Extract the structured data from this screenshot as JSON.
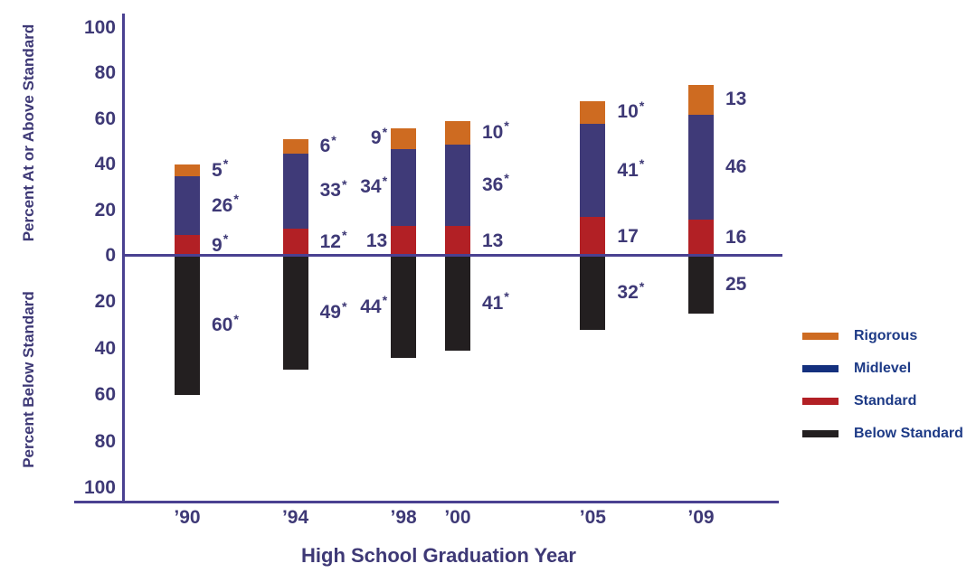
{
  "chart_data": {
    "type": "bar",
    "subtype": "diverging-stacked",
    "xlabel": "High School Graduation Year",
    "ylabel_top": "Percent At or Above Standard",
    "ylabel_bottom": "Percent Below Standard",
    "categories": [
      "’90",
      "’94",
      "’98",
      "’00",
      "’05",
      "’09"
    ],
    "years": [
      1990,
      1994,
      1998,
      2000,
      2005,
      2009
    ],
    "y_ticks_above": [
      "100",
      "80",
      "60",
      "40",
      "20",
      "0"
    ],
    "y_ticks_below": [
      "20",
      "40",
      "60",
      "80",
      "100"
    ],
    "ylim_above": [
      0,
      100
    ],
    "ylim_below": [
      0,
      100
    ],
    "series_above": [
      {
        "name": "Standard",
        "color": "#B22025",
        "values": [
          9,
          12,
          13,
          13,
          17,
          16
        ],
        "labels": [
          "9*",
          "12*",
          "13",
          "13",
          "17",
          "16"
        ]
      },
      {
        "name": "Midlevel",
        "color": "#3F3A78",
        "values": [
          26,
          33,
          34,
          36,
          41,
          46
        ],
        "labels": [
          "26*",
          "33*",
          "34*",
          "36*",
          "41*",
          "46"
        ]
      },
      {
        "name": "Rigorous",
        "color": "#CE6B21",
        "values": [
          5,
          6,
          9,
          10,
          10,
          13
        ],
        "labels": [
          "5*",
          "6*",
          "9*",
          "10*",
          "10*",
          "13"
        ]
      }
    ],
    "series_below": [
      {
        "name": "Below Standard",
        "color": "#231F20",
        "values": [
          60,
          49,
          44,
          41,
          32,
          25
        ],
        "labels": [
          "60*",
          "49*",
          "44*",
          "41*",
          "32*",
          "25"
        ]
      }
    ]
  },
  "legend": {
    "items": [
      {
        "name": "rigorous",
        "label": "Rigorous",
        "color": "#CE6B21"
      },
      {
        "name": "midlevel",
        "label": "Midlevel",
        "color": "#14307E"
      },
      {
        "name": "standard",
        "label": "Standard",
        "color": "#B22025"
      },
      {
        "name": "below-standard",
        "label": "Below Standard",
        "color": "#231F20"
      }
    ]
  },
  "colors": {
    "axis_line": "#4A4191",
    "text": "#3E3976",
    "legend_text": "#1D3A86"
  }
}
